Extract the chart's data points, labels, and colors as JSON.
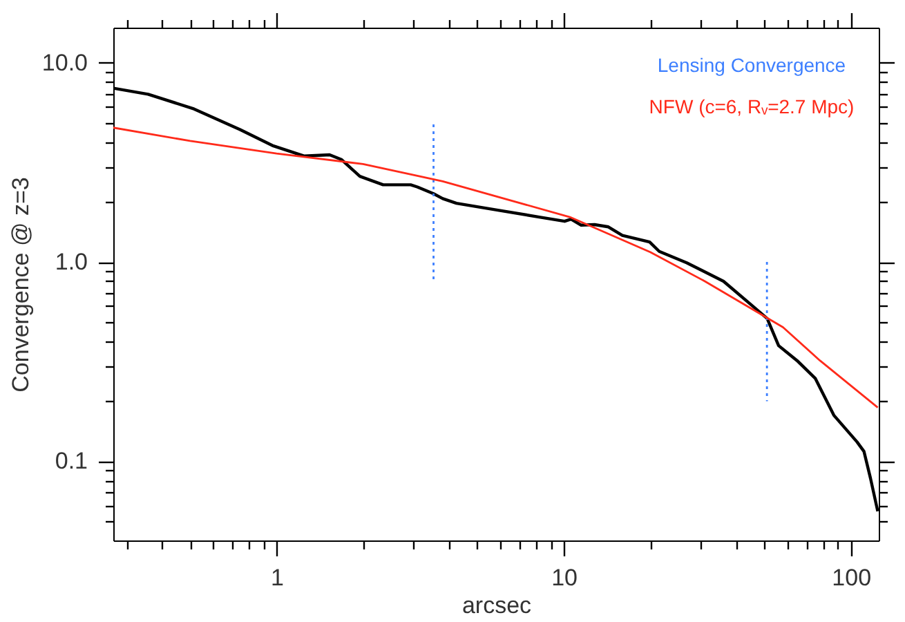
{
  "chart_data": {
    "type": "line",
    "xlabel": "arcsec",
    "ylabel": "Convergence @ z=3",
    "log": "xy",
    "grid": false,
    "legend": "top right",
    "line_style": "solid",
    "marker": "none",
    "xlim": [
      0.27,
      125
    ],
    "ylim": [
      0.04,
      15
    ],
    "xticks": [
      {
        "value": 0.3,
        "label": null
      },
      {
        "value": 0.4,
        "label": null
      },
      {
        "value": 0.5,
        "label": null
      },
      {
        "value": 0.6,
        "label": null
      },
      {
        "value": 0.7,
        "label": null
      },
      {
        "value": 0.8,
        "label": null
      },
      {
        "value": 0.9,
        "label": null
      },
      1,
      {
        "value": 2,
        "label": null
      },
      {
        "value": 3,
        "label": null
      },
      {
        "value": 4,
        "label": null
      },
      {
        "value": 5,
        "label": null
      },
      {
        "value": 6,
        "label": null
      },
      {
        "value": 7,
        "label": null
      },
      {
        "value": 8,
        "label": null
      },
      {
        "value": 9,
        "label": null
      },
      10,
      {
        "value": 20,
        "label": null
      },
      {
        "value": 30,
        "label": null
      },
      {
        "value": 40,
        "label": null
      },
      {
        "value": 50,
        "label": null
      },
      {
        "value": 60,
        "label": null
      },
      {
        "value": 70,
        "label": null
      },
      {
        "value": 80,
        "label": null
      },
      {
        "value": 90,
        "label": null
      },
      100
    ],
    "yticks": [
      {
        "value": 0.05,
        "label": null
      },
      {
        "value": 0.06,
        "label": null
      },
      {
        "value": 0.07,
        "label": null
      },
      {
        "value": 0.08,
        "label": null
      },
      {
        "value": 0.09,
        "label": null
      },
      {
        "value": 0.1,
        "label": "0.1"
      },
      {
        "value": 0.2,
        "label": null
      },
      {
        "value": 0.3,
        "label": null
      },
      {
        "value": 0.4,
        "label": null
      },
      {
        "value": 0.5,
        "label": null
      },
      {
        "value": 0.6,
        "label": null
      },
      {
        "value": 0.7,
        "label": null
      },
      {
        "value": 0.8,
        "label": null
      },
      {
        "value": 0.9,
        "label": null
      },
      {
        "value": 1,
        "label": "1.0"
      },
      {
        "value": 2,
        "label": null
      },
      {
        "value": 3,
        "label": null
      },
      {
        "value": 4,
        "label": null
      },
      {
        "value": 5,
        "label": null
      },
      {
        "value": 6,
        "label": null
      },
      {
        "value": 7,
        "label": null
      },
      {
        "value": 8,
        "label": null
      },
      {
        "value": 9,
        "label": null
      },
      {
        "value": 10,
        "label": "10.0"
      }
    ],
    "series": [
      {
        "color": "#000000",
        "x": [
          0.27,
          0.357,
          0.516,
          0.746,
          0.967,
          1.25,
          1.53,
          1.68,
          1.95,
          2.35,
          2.93,
          3.09,
          3.52,
          3.79,
          4.23,
          5.9,
          8.22,
          10.07,
          10.6,
          11.5,
          12.8,
          14.3,
          16.0,
          19.9,
          21.5,
          26.8,
          36.0,
          44.9,
          51.1,
          56.0,
          64.9,
          75.2,
          87.2,
          105,
          111,
          117,
          124
        ],
        "values": [
          7.45,
          6.95,
          5.86,
          4.62,
          3.84,
          3.4,
          3.45,
          3.27,
          2.69,
          2.44,
          2.44,
          2.38,
          2.2,
          2.08,
          1.97,
          1.82,
          1.68,
          1.6,
          1.64,
          1.53,
          1.54,
          1.5,
          1.36,
          1.26,
          1.13,
          0.99,
          0.8,
          0.61,
          0.52,
          0.38,
          0.32,
          0.26,
          0.17,
          0.125,
          0.112,
          0.082,
          0.056
        ]
      },
      {
        "name": "Lensing Convergence",
        "color": "#3d7fff",
        "line_style": "dotted",
        "x": [
          3.52,
          3.52
        ],
        "values": [
          4.9,
          0.8
        ]
      },
      {
        "color": "#3d7fff",
        "line_style": "dotted",
        "x": [
          51,
          51
        ],
        "values": [
          1.0,
          0.2
        ]
      },
      {
        "name": "NFW (c=6, Rᵥ=2.7 Mpc)",
        "color": "#ff2a1a",
        "x": [
          0.27,
          0.5,
          1,
          2,
          3.79,
          10.5,
          20,
          31,
          58,
          78,
          124
        ],
        "values": [
          4.72,
          4.05,
          3.5,
          3.1,
          2.54,
          1.68,
          1.12,
          0.8,
          0.47,
          0.32,
          0.186
        ]
      }
    ]
  }
}
